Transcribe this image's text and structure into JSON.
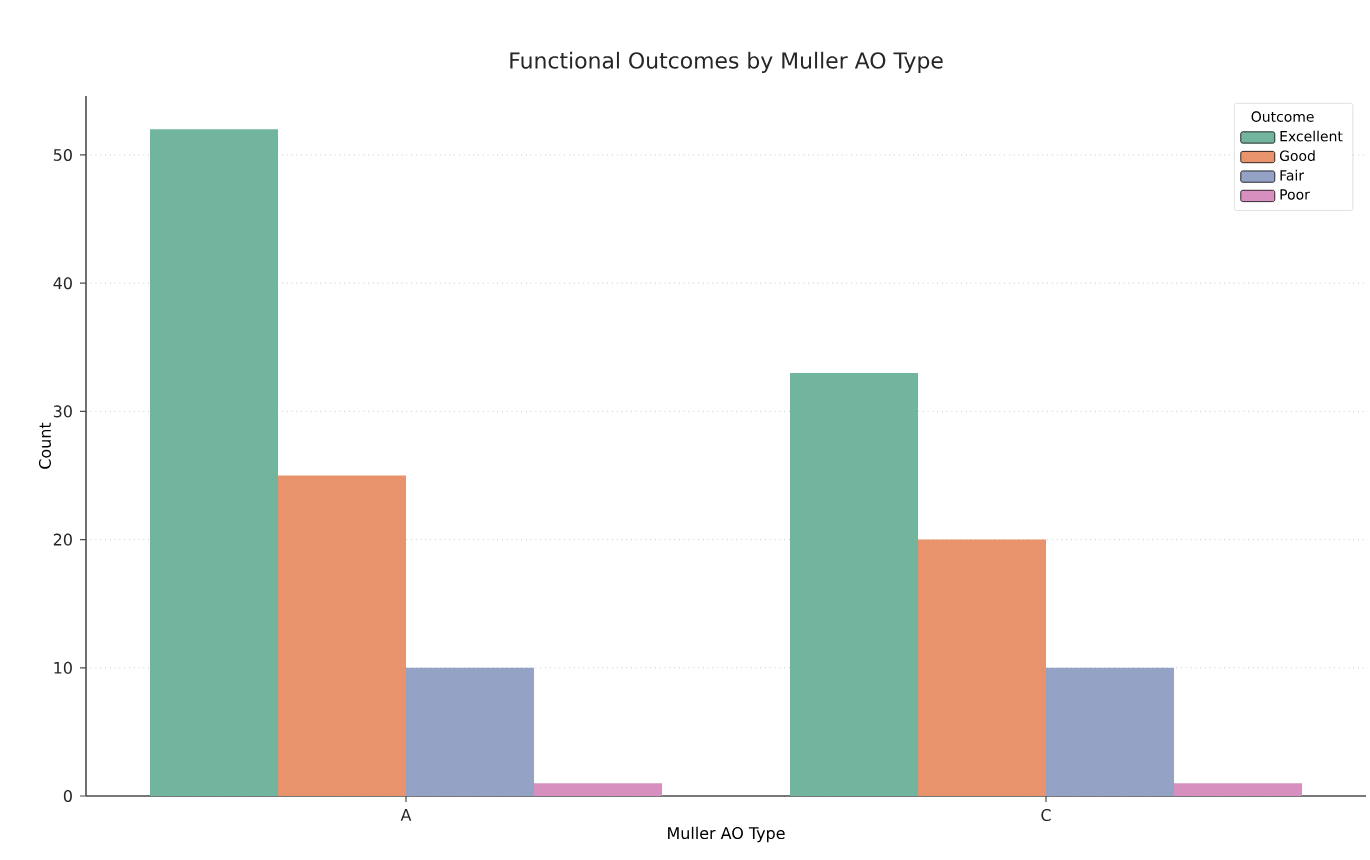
{
  "chart_data": {
    "type": "bar",
    "title": "Functional Outcomes by Muller AO Type",
    "xlabel": "Muller AO Type",
    "ylabel": "Count",
    "legend_title": "Outcome",
    "categories": [
      "A",
      "C"
    ],
    "series": [
      {
        "name": "Excellent",
        "color": "#72b59e",
        "values": [
          52,
          33
        ]
      },
      {
        "name": "Good",
        "color": "#e8936b",
        "values": [
          25,
          20
        ]
      },
      {
        "name": "Fair",
        "color": "#94a3c5",
        "values": [
          10,
          10
        ]
      },
      {
        "name": "Poor",
        "color": "#d68fbf",
        "values": [
          1,
          1
        ]
      }
    ],
    "ylim": [
      0,
      54.6
    ],
    "yticks": [
      0,
      10,
      20,
      30,
      40,
      50
    ],
    "grid": "y",
    "legend": "top right"
  }
}
